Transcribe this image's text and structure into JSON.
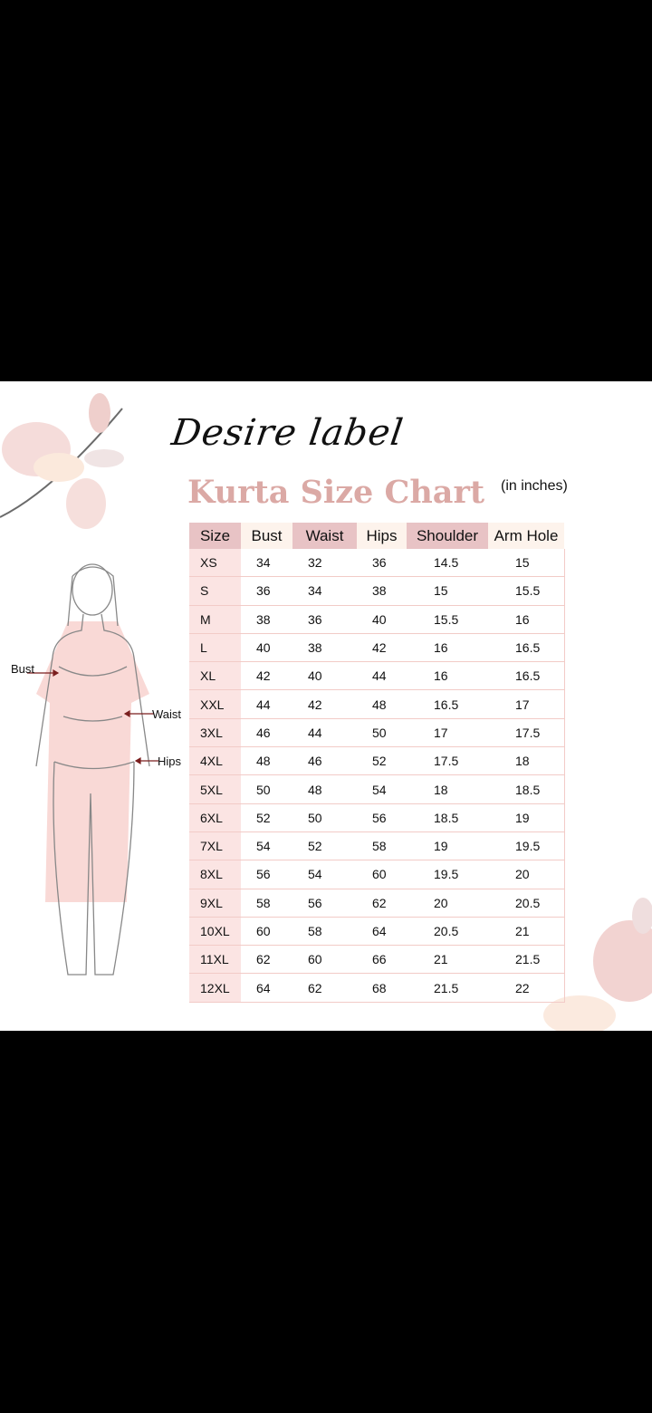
{
  "brand": "Desire label",
  "title": "Kurta Size Chart",
  "unit_note": "(in inches)",
  "figure_labels": {
    "bust": "Bust",
    "waist": "Waist",
    "hips": "Hips"
  },
  "colors": {
    "title": "#dba9a5",
    "header_pink": "#e8c3c5",
    "header_cream": "#fdf3ec",
    "size_column": "#fbe4e3",
    "dress": "#f9d9d6",
    "arrow": "#7a1f1f"
  },
  "table": {
    "headers": [
      "Size",
      "Bust",
      "Waist",
      "Hips",
      "Shoulder",
      "Arm Hole"
    ],
    "rows": [
      [
        "XS",
        "34",
        "32",
        "36",
        "14.5",
        "15"
      ],
      [
        "S",
        "36",
        "34",
        "38",
        "15",
        "15.5"
      ],
      [
        "M",
        "38",
        "36",
        "40",
        "15.5",
        "16"
      ],
      [
        "L",
        "40",
        "38",
        "42",
        "16",
        "16.5"
      ],
      [
        "XL",
        "42",
        "40",
        "44",
        "16",
        "16.5"
      ],
      [
        "XXL",
        "44",
        "42",
        "48",
        "16.5",
        "17"
      ],
      [
        "3XL",
        "46",
        "44",
        "50",
        "17",
        "17.5"
      ],
      [
        "4XL",
        "48",
        "46",
        "52",
        "17.5",
        "18"
      ],
      [
        "5XL",
        "50",
        "48",
        "54",
        "18",
        "18.5"
      ],
      [
        "6XL",
        "52",
        "50",
        "56",
        "18.5",
        "19"
      ],
      [
        "7XL",
        "54",
        "52",
        "58",
        "19",
        "19.5"
      ],
      [
        "8XL",
        "56",
        "54",
        "60",
        "19.5",
        "20"
      ],
      [
        "9XL",
        "58",
        "56",
        "62",
        "20",
        "20.5"
      ],
      [
        "10XL",
        "60",
        "58",
        "64",
        "20.5",
        "21"
      ],
      [
        "11XL",
        "62",
        "60",
        "66",
        "21",
        "21.5"
      ],
      [
        "12XL",
        "64",
        "62",
        "68",
        "21.5",
        "22"
      ]
    ]
  }
}
